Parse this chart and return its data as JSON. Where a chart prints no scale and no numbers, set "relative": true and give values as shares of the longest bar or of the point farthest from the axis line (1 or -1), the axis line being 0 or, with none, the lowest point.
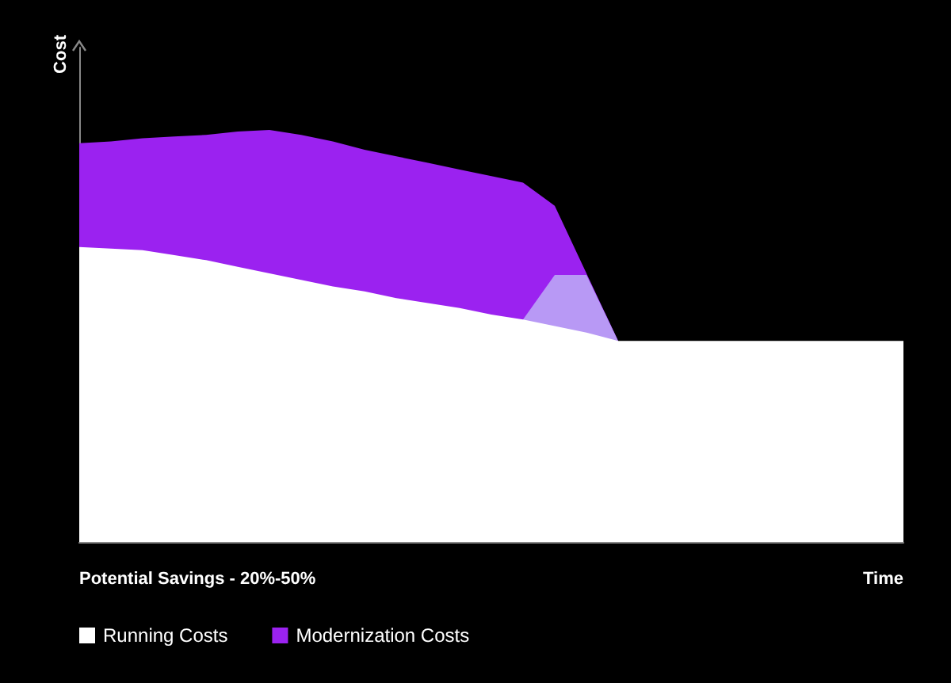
{
  "chart_data": {
    "type": "area",
    "relative": true,
    "ylabel": "Cost",
    "xlabel": "Time",
    "annotations": [
      "Potential Savings - 20%-50%"
    ],
    "categories": [
      null,
      null,
      null,
      null,
      null,
      null,
      null,
      null,
      null,
      null,
      null,
      null,
      null,
      null,
      null,
      null,
      null,
      null,
      null,
      null,
      null,
      null,
      null,
      null,
      null,
      null,
      null
    ],
    "series": [
      {
        "name": "Running Costs",
        "color": "#ffffff",
        "values": [
          0.716,
          0.712,
          0.708,
          0.696,
          0.684,
          0.668,
          0.652,
          0.636,
          0.62,
          0.608,
          0.592,
          0.58,
          0.568,
          0.552,
          0.54,
          0.524,
          0.508,
          0.488,
          0.488,
          0.488,
          0.488,
          0.488,
          0.488,
          0.488,
          0.488,
          0.488,
          0.488
        ]
      },
      {
        "color": "#b899f5",
        "values": [
          null,
          null,
          null,
          null,
          null,
          null,
          null,
          null,
          null,
          null,
          null,
          null,
          null,
          null,
          0.54,
          0.648,
          0.648,
          0.488,
          null,
          null,
          null,
          null,
          null,
          null,
          null,
          null,
          null
        ]
      },
      {
        "name": "Modernization Costs",
        "color": "#9b22f0",
        "values": [
          0.968,
          0.972,
          0.98,
          0.984,
          0.988,
          0.996,
          1.0,
          0.988,
          0.972,
          0.952,
          0.936,
          0.92,
          0.904,
          0.888,
          0.872,
          0.816,
          0.652,
          0.488,
          null,
          null,
          null,
          null,
          null,
          null,
          null,
          null,
          null
        ]
      }
    ],
    "legend": "bottom left",
    "marker": "none"
  }
}
